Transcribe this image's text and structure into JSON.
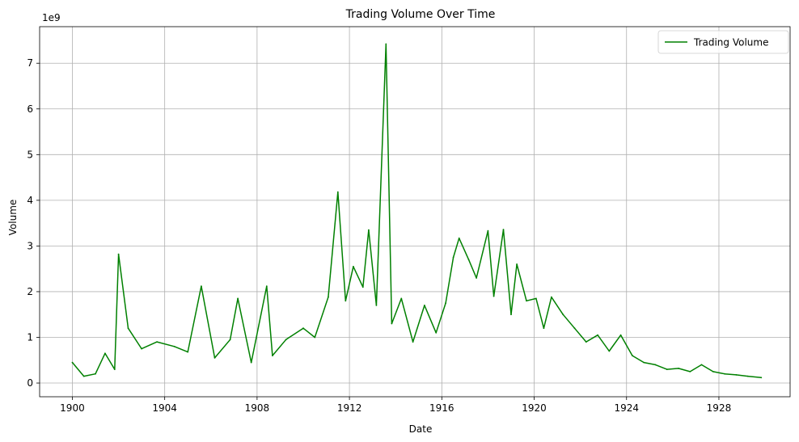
{
  "chart_data": {
    "type": "line",
    "title": "Trading Volume Over Time",
    "xlabel": "Date",
    "ylabel": "Volume",
    "y_scale_label": "1e9",
    "x_ticks": [
      "1900",
      "1904",
      "1908",
      "1912",
      "1916",
      "1920",
      "1924",
      "1928"
    ],
    "y_ticks": [
      "0",
      "1",
      "2",
      "3",
      "4",
      "5",
      "6",
      "7"
    ],
    "xlim": [
      "1898-08",
      "1931-02"
    ],
    "ylim": [
      -0.3,
      7.8
    ],
    "grid": true,
    "legend_position": "top-right",
    "series": [
      {
        "name": "Trading Volume",
        "color": "#008000",
        "x": [
          "1900-01",
          "1900-07",
          "1901-01",
          "1901-06",
          "1901-11",
          "1902-01",
          "1902-06",
          "1903-01",
          "1903-09",
          "1904-06",
          "1905-01",
          "1905-08",
          "1906-03",
          "1906-11",
          "1907-03",
          "1907-10",
          "1908-06",
          "1908-09",
          "1909-04",
          "1910-01",
          "1910-07",
          "1911-02",
          "1911-07",
          "1911-11",
          "1912-03",
          "1912-08",
          "1912-11",
          "1913-03",
          "1913-08",
          "1913-11",
          "1914-04",
          "1914-10",
          "1915-04",
          "1915-10",
          "1916-03",
          "1916-07",
          "1916-10",
          "1917-03",
          "1917-07",
          "1918-01",
          "1918-04",
          "1918-09",
          "1919-01",
          "1919-04",
          "1919-09",
          "1920-02",
          "1920-06",
          "1920-10",
          "1921-04",
          "1921-10",
          "1922-04",
          "1922-10",
          "1923-04",
          "1923-10",
          "1924-04",
          "1924-10",
          "1925-04",
          "1925-10",
          "1926-04",
          "1926-10",
          "1927-04",
          "1927-10",
          "1928-04",
          "1928-10",
          "1929-04",
          "1929-11"
        ],
        "values": [
          0.45,
          0.15,
          0.2,
          0.65,
          0.3,
          2.82,
          1.2,
          0.75,
          0.9,
          0.8,
          0.68,
          2.12,
          0.55,
          0.95,
          1.85,
          0.45,
          2.12,
          0.6,
          0.95,
          1.2,
          1.0,
          1.88,
          4.18,
          1.8,
          2.55,
          2.1,
          3.35,
          1.7,
          7.42,
          1.3,
          1.85,
          0.9,
          1.7,
          1.1,
          1.75,
          2.75,
          3.17,
          2.7,
          2.3,
          3.33,
          1.9,
          3.36,
          1.5,
          2.6,
          1.8,
          1.85,
          1.2,
          1.88,
          1.5,
          1.2,
          0.9,
          1.05,
          0.7,
          1.05,
          0.6,
          0.45,
          0.4,
          0.3,
          0.32,
          0.25,
          0.4,
          0.25,
          0.2,
          0.18,
          0.15,
          0.12
        ]
      }
    ]
  }
}
